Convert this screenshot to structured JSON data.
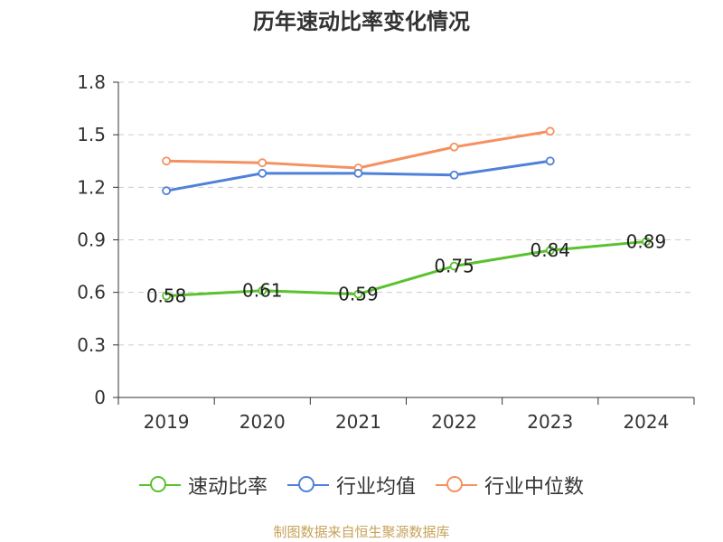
{
  "chart_data": {
    "type": "line",
    "title": "历年速动比率变化情况",
    "categories": [
      "2019",
      "2020",
      "2021",
      "2022",
      "2023",
      "2024"
    ],
    "y_ticks": [
      "0",
      "0.3",
      "0.6",
      "0.9",
      "1.2",
      "1.5",
      "1.8"
    ],
    "ylim": [
      0,
      1.8
    ],
    "grid": true,
    "legend_position": "bottom",
    "series": [
      {
        "name": "速动比率",
        "color": "#5ac12f",
        "values": [
          0.58,
          0.61,
          0.59,
          0.75,
          0.84,
          0.89
        ],
        "labels": [
          "0.58",
          "0.61",
          "0.59",
          "0.75",
          "0.84",
          "0.89"
        ]
      },
      {
        "name": "行业均值",
        "color": "#4f81d9",
        "values": [
          1.18,
          1.28,
          1.28,
          1.27,
          1.35,
          null
        ]
      },
      {
        "name": "行业中位数",
        "color": "#f59160",
        "values": [
          1.35,
          1.34,
          1.31,
          1.43,
          1.52,
          null
        ]
      }
    ]
  },
  "source_text": "制图数据来自恒生聚源数据库"
}
